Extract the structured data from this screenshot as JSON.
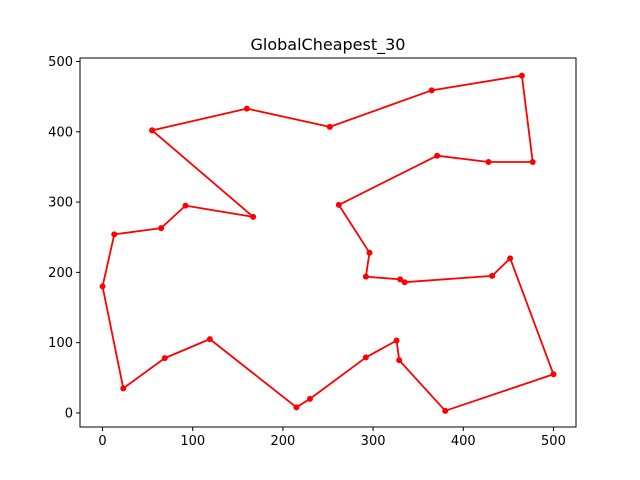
{
  "chart_data": {
    "type": "line",
    "title": "GlobalCheapest_30",
    "xlabel": "",
    "ylabel": "",
    "xlim": [
      -25,
      525
    ],
    "ylim": [
      -20,
      505
    ],
    "xticks": [
      0,
      100,
      200,
      300,
      400,
      500
    ],
    "yticks": [
      0,
      100,
      200,
      300,
      400,
      500
    ],
    "xtick_labels": [
      "0",
      "100",
      "200",
      "300",
      "400",
      "500"
    ],
    "ytick_labels": [
      "0",
      "100",
      "200",
      "300",
      "400",
      "500"
    ],
    "grid": false,
    "legend": "none",
    "series": [
      {
        "color": "#ff0000",
        "marker": "circle",
        "x": [
          55,
          160,
          252,
          365,
          465,
          477,
          428,
          371,
          262,
          296,
          292,
          330,
          335,
          432,
          452,
          500,
          380,
          329,
          326,
          292,
          230,
          215,
          119,
          69,
          23,
          0,
          13,
          65,
          92,
          167,
          55
        ],
        "y": [
          402,
          433,
          407,
          459,
          480,
          357,
          357,
          366,
          296,
          228,
          194,
          190,
          186,
          195,
          220,
          55,
          3,
          75,
          103,
          79,
          20,
          8,
          105,
          78,
          35,
          180,
          254,
          263,
          295,
          279,
          402
        ]
      }
    ]
  }
}
